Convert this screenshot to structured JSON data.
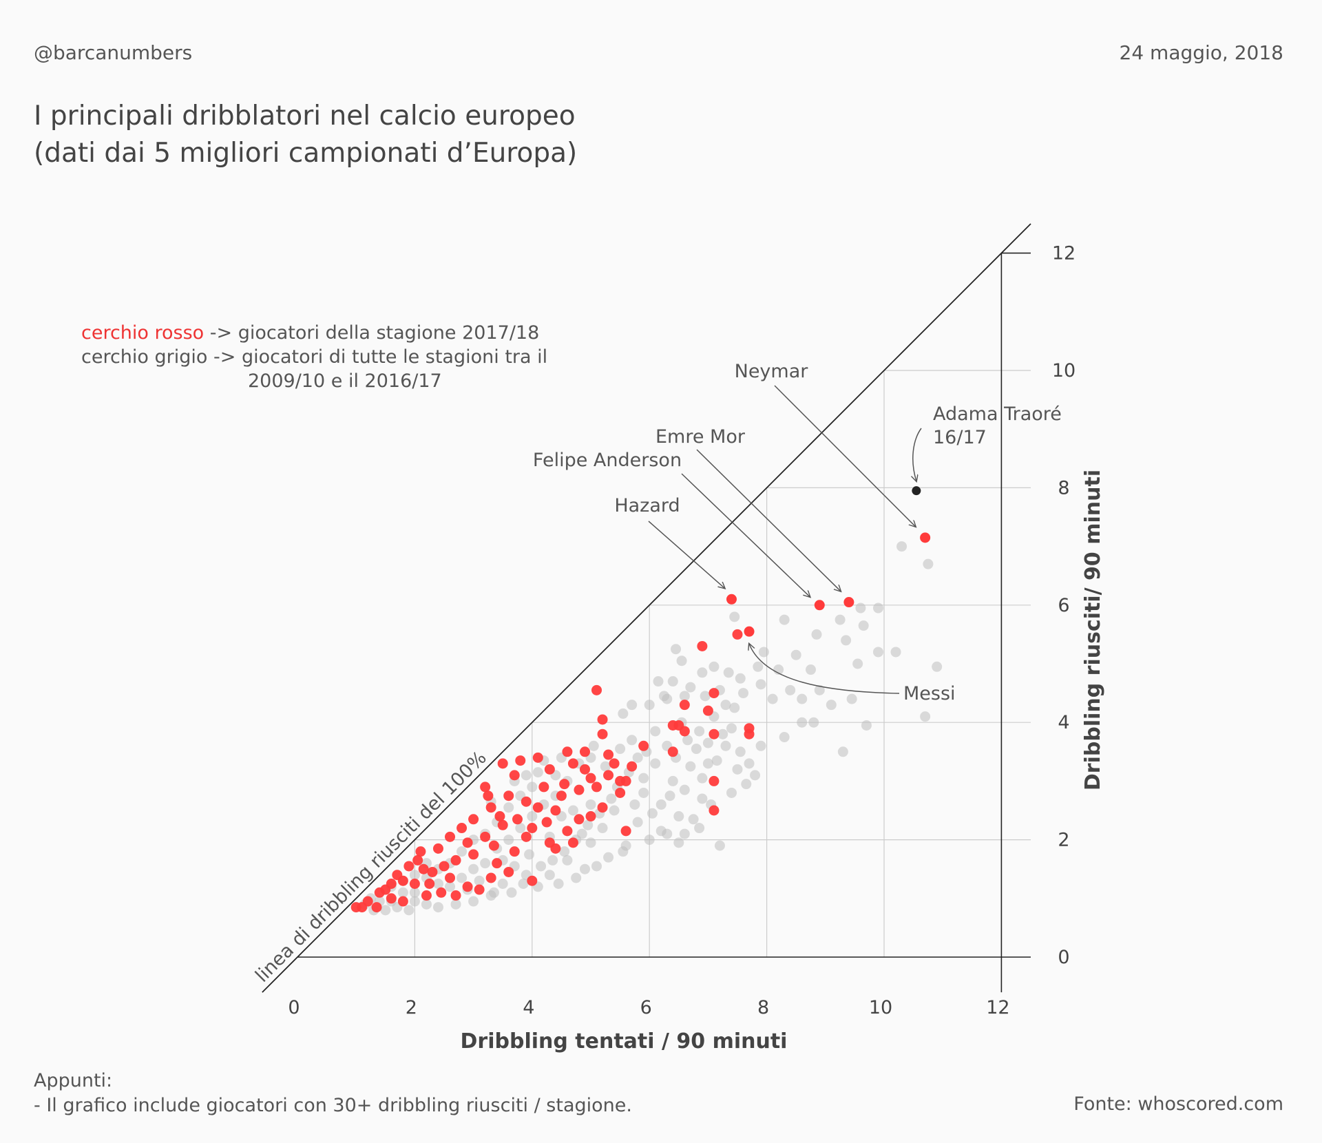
{
  "header": {
    "handle": "@barcanumbers",
    "date": "24 maggio, 2018",
    "title_line1": "I principali dribblatori nel calcio europeo",
    "title_line2": "(dati dai 5 migliori campionati d’Europa)"
  },
  "legend": {
    "red_label": "cerchio rosso",
    "red_text": " -> giocatori della stagione 2017/18",
    "grey_text": "cerchio grigio -> giocatori di tutte le stagioni tra il",
    "grey_text_2": "2009/10 e il 2016/17"
  },
  "footer": {
    "notes_title": "Appunti:",
    "notes_line": "- Il grafico include giocatori con 30+ dribbling riusciti / stagione.",
    "source": "Fonte: whoscored.com"
  },
  "colors": {
    "red": "#ff3b3b",
    "grey": "#bdbdbd",
    "black": "#222222",
    "grid": "#cccccc",
    "axis": "#222222",
    "text": "#444444"
  },
  "chart_data": {
    "type": "scatter",
    "title": "I principali dribblatori nel calcio europeo (dati dai 5 migliori campionati d’Europa)",
    "xlabel": "Dribbling tentati / 90 minuti",
    "ylabel": "Dribbling riusciti/ 90 minuti",
    "xlim": [
      0,
      12.5
    ],
    "ylim": [
      0,
      12.5
    ],
    "xticks": [
      0,
      2,
      4,
      6,
      8,
      10,
      12
    ],
    "yticks": [
      0,
      2,
      4,
      6,
      8,
      10,
      12
    ],
    "diagonal_label": "linea di dribbling riusciti del 100%",
    "highlights": [
      {
        "name": "Neymar",
        "x": 10.7,
        "y": 7.15,
        "series": "2017/18"
      },
      {
        "name": "Emre Mor",
        "x": 9.4,
        "y": 6.05,
        "series": "2017/18"
      },
      {
        "name": "Felipe Anderson",
        "x": 8.9,
        "y": 6.0,
        "series": "2017/18"
      },
      {
        "name": "Hazard",
        "x": 7.4,
        "y": 6.1,
        "series": "2017/18"
      },
      {
        "name": "Messi",
        "x": 7.7,
        "y": 5.55,
        "series": "2017/18"
      },
      {
        "name": "Adama Traoré",
        "name2": "16/17",
        "x": 10.55,
        "y": 7.95,
        "series": "2016/17"
      }
    ],
    "series": [
      {
        "name": "2017/18",
        "color": "red",
        "points": [
          [
            7.5,
            5.5
          ],
          [
            6.9,
            5.3
          ],
          [
            5.1,
            4.55
          ],
          [
            5.2,
            4.05
          ],
          [
            7.1,
            4.5
          ],
          [
            6.6,
            4.3
          ],
          [
            7.0,
            4.2
          ],
          [
            6.5,
            3.95
          ],
          [
            7.7,
            3.9
          ],
          [
            7.7,
            3.8
          ],
          [
            7.1,
            3.8
          ],
          [
            6.4,
            3.95
          ],
          [
            6.6,
            3.85
          ],
          [
            5.9,
            3.6
          ],
          [
            5.2,
            3.8
          ],
          [
            4.9,
            3.5
          ],
          [
            5.3,
            3.45
          ],
          [
            5.4,
            3.3
          ],
          [
            5.7,
            3.25
          ],
          [
            5.6,
            3.0
          ],
          [
            6.4,
            3.5
          ],
          [
            7.1,
            3.0
          ],
          [
            7.1,
            2.5
          ],
          [
            3.2,
            2.9
          ],
          [
            3.5,
            3.3
          ],
          [
            3.7,
            3.1
          ],
          [
            3.8,
            3.35
          ],
          [
            4.1,
            3.4
          ],
          [
            4.3,
            3.2
          ],
          [
            4.6,
            3.5
          ],
          [
            4.7,
            3.3
          ],
          [
            4.9,
            3.2
          ],
          [
            5.0,
            3.05
          ],
          [
            5.5,
            2.8
          ],
          [
            5.2,
            2.55
          ],
          [
            5.0,
            2.4
          ],
          [
            4.6,
            2.15
          ],
          [
            4.7,
            1.95
          ],
          [
            4.4,
            1.85
          ],
          [
            4.3,
            1.95
          ],
          [
            4.0,
            2.2
          ],
          [
            3.9,
            2.05
          ],
          [
            3.7,
            1.8
          ],
          [
            3.4,
            1.6
          ],
          [
            4.0,
            1.3
          ],
          [
            3.3,
            1.35
          ],
          [
            3.0,
            1.75
          ],
          [
            2.7,
            1.65
          ],
          [
            2.5,
            1.55
          ],
          [
            2.3,
            1.45
          ],
          [
            2.0,
            1.25
          ],
          [
            1.8,
            1.3
          ],
          [
            1.6,
            1.0
          ],
          [
            1.4,
            1.1
          ],
          [
            1.2,
            0.95
          ],
          [
            1.1,
            0.85
          ],
          [
            1.0,
            0.85
          ],
          [
            1.35,
            0.85
          ],
          [
            1.6,
            1.25
          ],
          [
            1.9,
            1.55
          ],
          [
            2.1,
            1.8
          ],
          [
            2.4,
            1.85
          ],
          [
            2.6,
            2.05
          ],
          [
            2.8,
            2.2
          ],
          [
            3.0,
            2.35
          ],
          [
            3.3,
            2.55
          ],
          [
            3.6,
            2.75
          ],
          [
            4.2,
            2.9
          ],
          [
            4.5,
            2.75
          ],
          [
            4.8,
            2.85
          ],
          [
            5.1,
            2.9
          ],
          [
            5.3,
            3.1
          ],
          [
            5.5,
            3.0
          ],
          [
            4.4,
            2.5
          ],
          [
            3.5,
            2.25
          ],
          [
            3.2,
            2.05
          ],
          [
            2.9,
            1.95
          ],
          [
            2.6,
            1.35
          ],
          [
            2.2,
            1.05
          ],
          [
            1.8,
            0.95
          ],
          [
            3.1,
            1.15
          ],
          [
            3.6,
            1.45
          ],
          [
            4.8,
            2.35
          ],
          [
            5.6,
            2.15
          ],
          [
            3.9,
            2.65
          ],
          [
            4.1,
            2.55
          ],
          [
            2.7,
            1.05
          ],
          [
            2.9,
            1.2
          ],
          [
            1.5,
            1.15
          ],
          [
            1.7,
            1.4
          ],
          [
            2.05,
            1.65
          ],
          [
            2.25,
            1.25
          ],
          [
            2.45,
            1.1
          ],
          [
            3.45,
            2.4
          ],
          [
            3.75,
            2.35
          ],
          [
            4.55,
            2.95
          ],
          [
            2.15,
            1.5
          ],
          [
            3.35,
            1.9
          ],
          [
            3.25,
            2.75
          ],
          [
            4.25,
            2.3
          ]
        ]
      },
      {
        "name": "2009/10 - 2016/17",
        "color": "grey",
        "points": [
          [
            10.3,
            7.0
          ],
          [
            10.75,
            6.7
          ],
          [
            10.9,
            4.95
          ],
          [
            10.7,
            4.1
          ],
          [
            10.2,
            5.2
          ],
          [
            9.9,
            5.2
          ],
          [
            9.55,
            5.0
          ],
          [
            9.35,
            5.4
          ],
          [
            9.65,
            5.65
          ],
          [
            9.9,
            5.95
          ],
          [
            9.6,
            5.95
          ],
          [
            9.25,
            5.75
          ],
          [
            8.85,
            5.5
          ],
          [
            8.3,
            5.75
          ],
          [
            7.45,
            5.8
          ],
          [
            8.8,
            4.0
          ],
          [
            9.45,
            4.4
          ],
          [
            9.7,
            3.95
          ],
          [
            9.3,
            3.5
          ],
          [
            8.6,
            4.0
          ],
          [
            8.75,
            4.9
          ],
          [
            8.5,
            5.15
          ],
          [
            8.2,
            4.9
          ],
          [
            7.95,
            5.2
          ],
          [
            7.85,
            4.95
          ],
          [
            7.55,
            4.75
          ],
          [
            7.35,
            4.85
          ],
          [
            7.1,
            4.95
          ],
          [
            6.9,
            4.85
          ],
          [
            6.7,
            4.6
          ],
          [
            6.55,
            5.05
          ],
          [
            6.45,
            5.25
          ],
          [
            6.15,
            4.7
          ],
          [
            5.7,
            4.3
          ],
          [
            5.55,
            4.15
          ],
          [
            6.0,
            4.3
          ],
          [
            6.3,
            4.4
          ],
          [
            6.55,
            4.0
          ],
          [
            6.85,
            3.85
          ],
          [
            7.3,
            3.6
          ],
          [
            7.4,
            3.9
          ],
          [
            7.55,
            3.5
          ],
          [
            7.7,
            3.3
          ],
          [
            7.8,
            3.1
          ],
          [
            7.65,
            2.95
          ],
          [
            7.4,
            2.8
          ],
          [
            7.0,
            3.3
          ],
          [
            6.8,
            3.55
          ],
          [
            6.4,
            3.0
          ],
          [
            6.1,
            3.3
          ],
          [
            5.9,
            2.8
          ],
          [
            6.2,
            2.6
          ],
          [
            6.5,
            2.4
          ],
          [
            6.9,
            2.7
          ],
          [
            7.2,
            1.9
          ],
          [
            6.6,
            2.1
          ],
          [
            6.0,
            2.0
          ],
          [
            5.6,
            1.9
          ],
          [
            5.8,
            2.3
          ],
          [
            5.4,
            2.5
          ],
          [
            5.3,
            1.7
          ],
          [
            5.0,
            1.95
          ],
          [
            4.9,
            1.5
          ],
          [
            4.6,
            1.65
          ],
          [
            4.3,
            1.4
          ],
          [
            4.1,
            1.2
          ],
          [
            3.9,
            1.4
          ],
          [
            3.5,
            1.25
          ],
          [
            3.3,
            1.05
          ],
          [
            3.0,
            0.95
          ],
          [
            2.7,
            0.9
          ],
          [
            2.4,
            0.85
          ],
          [
            2.2,
            0.9
          ],
          [
            2.0,
            0.95
          ],
          [
            1.9,
            0.8
          ],
          [
            1.7,
            0.85
          ],
          [
            1.5,
            0.8
          ],
          [
            1.3,
            0.8
          ],
          [
            1.15,
            0.9
          ],
          [
            1.25,
            1.0
          ],
          [
            5.05,
            3.6
          ],
          [
            4.8,
            3.3
          ],
          [
            4.6,
            3.0
          ],
          [
            4.4,
            2.75
          ],
          [
            4.5,
            2.4
          ],
          [
            4.2,
            2.6
          ],
          [
            4.0,
            2.4
          ],
          [
            3.8,
            2.2
          ],
          [
            3.6,
            2.0
          ],
          [
            3.4,
            1.85
          ],
          [
            3.2,
            1.6
          ],
          [
            3.0,
            1.5
          ],
          [
            2.8,
            1.35
          ],
          [
            2.6,
            1.2
          ],
          [
            2.4,
            1.25
          ],
          [
            2.2,
            1.35
          ],
          [
            2.0,
            1.1
          ],
          [
            1.8,
            1.1
          ],
          [
            1.6,
            0.95
          ],
          [
            1.4,
            0.95
          ],
          [
            5.7,
            3.7
          ],
          [
            5.5,
            3.55
          ],
          [
            5.8,
            3.4
          ],
          [
            6.1,
            3.85
          ],
          [
            6.3,
            3.6
          ],
          [
            6.7,
            3.25
          ],
          [
            6.9,
            3.05
          ],
          [
            7.15,
            3.35
          ],
          [
            7.5,
            3.2
          ],
          [
            7.1,
            4.1
          ],
          [
            7.3,
            4.3
          ],
          [
            7.6,
            4.5
          ],
          [
            7.9,
            4.65
          ],
          [
            8.1,
            4.4
          ],
          [
            8.4,
            4.55
          ],
          [
            8.6,
            4.4
          ],
          [
            8.9,
            4.55
          ],
          [
            9.1,
            4.3
          ],
          [
            8.3,
            3.75
          ],
          [
            7.9,
            3.6
          ],
          [
            5.2,
            2.2
          ],
          [
            5.0,
            2.6
          ],
          [
            4.85,
            2.1
          ],
          [
            4.7,
            2.5
          ],
          [
            4.3,
            2.05
          ],
          [
            3.95,
            1.75
          ],
          [
            3.7,
            1.55
          ],
          [
            3.5,
            1.65
          ],
          [
            3.1,
            1.3
          ],
          [
            2.9,
            1.15
          ],
          [
            5.9,
            3.05
          ],
          [
            6.05,
            2.45
          ],
          [
            6.35,
            2.75
          ],
          [
            6.6,
            2.85
          ],
          [
            6.75,
            2.35
          ],
          [
            6.2,
            2.15
          ],
          [
            5.75,
            2.6
          ],
          [
            5.45,
            2.9
          ],
          [
            5.25,
            3.25
          ],
          [
            5.0,
            3.4
          ],
          [
            4.4,
            3.1
          ],
          [
            4.2,
            3.35
          ],
          [
            4.0,
            2.9
          ],
          [
            3.8,
            2.75
          ],
          [
            3.6,
            2.55
          ],
          [
            3.4,
            2.3
          ],
          [
            3.2,
            2.1
          ],
          [
            3.0,
            2.0
          ],
          [
            2.8,
            1.8
          ],
          [
            2.6,
            1.6
          ],
          [
            2.4,
            1.5
          ],
          [
            2.2,
            1.6
          ],
          [
            2.0,
            1.4
          ],
          [
            1.8,
            1.3
          ],
          [
            1.6,
            1.2
          ],
          [
            3.3,
            2.65
          ],
          [
            3.7,
            3.0
          ],
          [
            3.9,
            3.1
          ],
          [
            4.1,
            3.15
          ],
          [
            4.5,
            3.4
          ],
          [
            6.4,
            4.7
          ],
          [
            6.25,
            4.45
          ],
          [
            6.6,
            4.45
          ],
          [
            6.95,
            4.45
          ],
          [
            7.2,
            4.55
          ],
          [
            7.45,
            4.25
          ],
          [
            7.25,
            3.8
          ],
          [
            7.0,
            3.65
          ],
          [
            6.65,
            3.7
          ],
          [
            6.45,
            3.4
          ],
          [
            5.95,
            3.5
          ],
          [
            5.65,
            3.15
          ],
          [
            5.35,
            2.7
          ],
          [
            5.15,
            2.45
          ],
          [
            4.95,
            2.25
          ],
          [
            4.75,
            2.0
          ],
          [
            4.55,
            1.8
          ],
          [
            4.35,
            1.65
          ],
          [
            4.15,
            1.55
          ],
          [
            3.85,
            1.25
          ],
          [
            6.5,
            1.95
          ],
          [
            6.85,
            2.2
          ],
          [
            7.05,
            2.6
          ],
          [
            6.3,
            2.1
          ],
          [
            5.55,
            1.8
          ],
          [
            5.1,
            1.55
          ],
          [
            4.75,
            1.35
          ],
          [
            4.45,
            1.25
          ],
          [
            3.65,
            1.1
          ],
          [
            3.35,
            1.1
          ]
        ]
      }
    ]
  }
}
